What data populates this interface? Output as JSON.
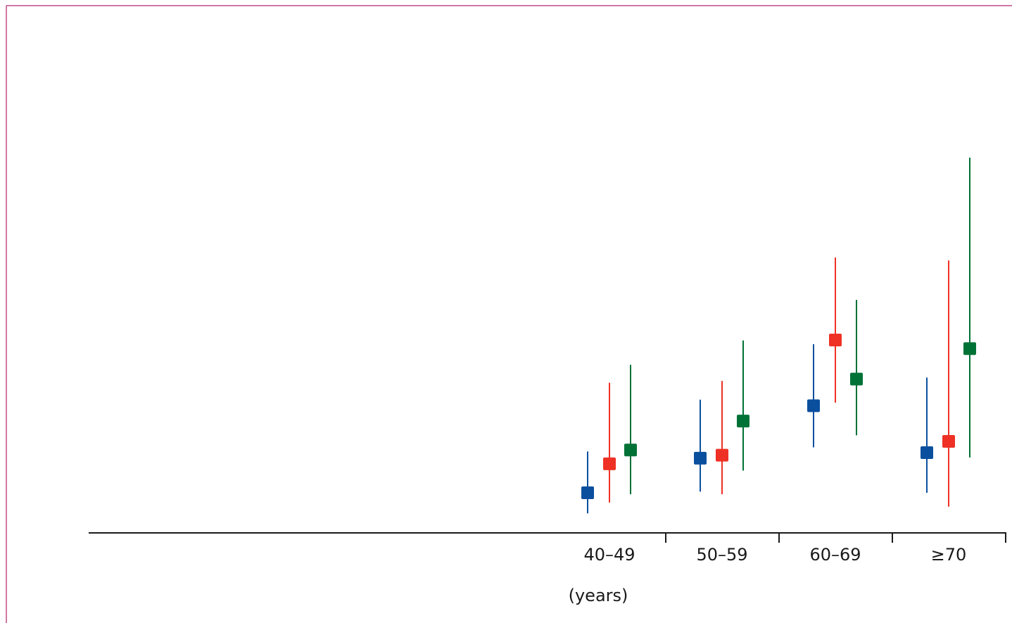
{
  "chart_data": {
    "type": "scatter",
    "subtype": "error-bar",
    "categories": [
      "40–49",
      "50–59",
      "60–69",
      "≥70"
    ],
    "x_unit_label": "(years)",
    "ylim": [
      0,
      100
    ],
    "grid": false,
    "legend": "none",
    "series": [
      {
        "color": "#0a4f9e",
        "values": [
          10.7,
          19.9,
          33.9,
          21.4
        ],
        "lower": [
          5.2,
          11.0,
          22.8,
          10.7
        ],
        "upper": [
          21.7,
          35.5,
          50.3,
          41.4
        ]
      },
      {
        "color": "#ee3124",
        "values": [
          18.4,
          20.7,
          51.4,
          24.4
        ],
        "lower": [
          8.1,
          10.3,
          34.7,
          7.0
        ],
        "upper": [
          40.0,
          40.5,
          73.4,
          72.6
        ]
      },
      {
        "color": "#007236",
        "values": [
          22.1,
          29.8,
          41.0,
          49.1
        ],
        "lower": [
          10.3,
          16.6,
          26.0,
          20.1
        ],
        "upper": [
          44.8,
          51.3,
          62.1,
          100.0
        ]
      }
    ]
  }
}
